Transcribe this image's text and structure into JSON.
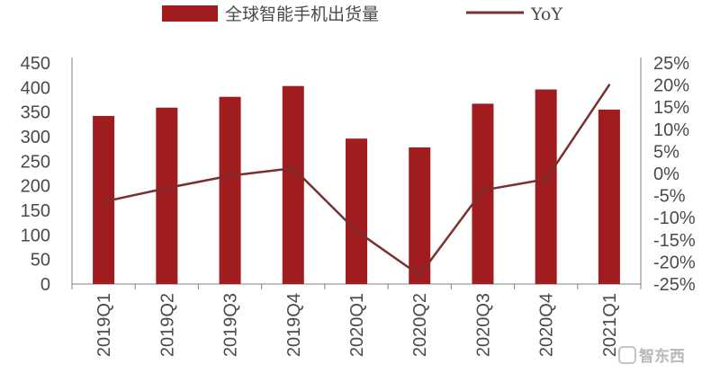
{
  "chart_data": {
    "type": "bar+line",
    "categories": [
      "2019Q1",
      "2019Q2",
      "2019Q3",
      "2019Q4",
      "2020Q1",
      "2020Q2",
      "2020Q3",
      "2020Q4",
      "2021Q1"
    ],
    "series": [
      {
        "name": "全球智能手机出货量",
        "type": "bar",
        "axis": "left",
        "values": [
          342,
          359,
          381,
          403,
          296,
          278,
          367,
          396,
          355
        ]
      },
      {
        "name": "YoY",
        "type": "line",
        "axis": "right",
        "values": [
          -6.4,
          -3.3,
          -0.5,
          1.2,
          -13.0,
          -23.0,
          -3.8,
          -1.3,
          20.0
        ]
      }
    ],
    "y_left": {
      "min": 0,
      "max": 450,
      "step": 50,
      "ticks": [
        "0",
        "50",
        "100",
        "150",
        "200",
        "250",
        "300",
        "350",
        "400",
        "450"
      ]
    },
    "y_right": {
      "min": -25,
      "max": 25,
      "step": 5,
      "ticks": [
        "-25%",
        "-20%",
        "-15%",
        "-10%",
        "-5%",
        "0%",
        "5%",
        "10%",
        "15%",
        "20%",
        "25%"
      ]
    },
    "legend_position": "top",
    "grid": false,
    "colors": {
      "bar": "#a01c1f",
      "line": "#7b2f2f",
      "axis": "#808080",
      "text": "#4a4a4a"
    }
  },
  "watermark": {
    "text": "智东西"
  }
}
